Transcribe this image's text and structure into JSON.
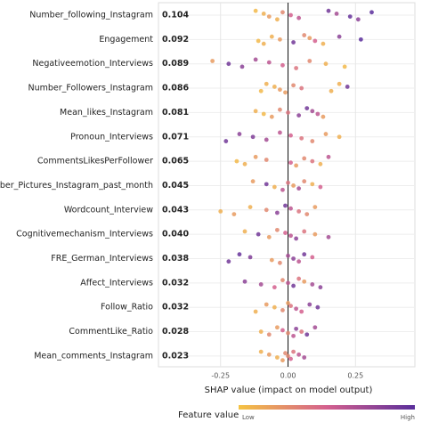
{
  "chart_data": {
    "type": "beeswarm",
    "xlabel": "SHAP value (impact on model output)",
    "legend_title": "Feature value",
    "legend_low": "Low",
    "legend_high": "High",
    "colors": [
      "#f5c342",
      "#d4608e",
      "#5a2e9b"
    ],
    "xlim": [
      -0.48,
      0.47
    ],
    "xticks": [
      -0.25,
      {
        "value": 0,
        "label": "0.00"
      },
      0.25
    ],
    "grid": true,
    "features": [
      "Number_following_Instagram",
      "Engagement",
      "Negativeemotion_Interviews",
      "Number_Followers_Instagram",
      "Mean_likes_Instagram",
      "Pronoun_Interviews",
      "CommentsLikesPerFollower",
      "Number_Pictures_Instagram_past_month",
      "Wordcount_Interview",
      "Cognitivemechanism_Interviews",
      "FRE_German_Interviews",
      "Affect_Interviews",
      "Follow_Ratio",
      "CommentLike_Ratio",
      "Mean_comments_Instagram"
    ],
    "values": [
      0.104,
      0.092,
      0.089,
      0.086,
      0.081,
      0.071,
      0.065,
      0.045,
      0.043,
      0.04,
      0.038,
      0.032,
      0.032,
      0.028,
      0.023
    ],
    "value_labels": [
      "0.104",
      "0.092",
      "0.089",
      "0.086",
      "0.081",
      "0.071",
      "0.065",
      "0.045",
      "0.043",
      "0.040",
      "0.038",
      "0.032",
      "0.032",
      "0.028",
      "0.023"
    ],
    "points": [
      {
        "x": [
          -0.12,
          -0.09,
          -0.07,
          -0.04,
          -0.02,
          0.01,
          0.04,
          0.15,
          0.18,
          0.23,
          0.26,
          0.31
        ],
        "feature_value": [
          0.05,
          0.1,
          0.2,
          0.1,
          0.3,
          0.5,
          0.6,
          0.9,
          0.7,
          0.95,
          0.8,
          1
        ]
      },
      {
        "x": [
          -0.11,
          -0.09,
          -0.06,
          -0.03,
          0.02,
          0.06,
          0.08,
          0.1,
          0.13,
          0.19,
          0.27
        ],
        "feature_value": [
          0.05,
          0.1,
          0.1,
          0.2,
          0.9,
          0.3,
          0.2,
          0.5,
          0.1,
          0.8,
          1
        ]
      },
      {
        "x": [
          -0.28,
          -0.22,
          -0.17,
          -0.12,
          -0.07,
          -0.02,
          0.03,
          0.08,
          0.14,
          0.21
        ],
        "feature_value": [
          0.2,
          0.9,
          0.8,
          0.7,
          0.6,
          0.5,
          0.4,
          0.3,
          0.1,
          0.05
        ]
      },
      {
        "x": [
          -0.1,
          -0.08,
          -0.05,
          -0.03,
          -0.01,
          0.02,
          0.05,
          0.16,
          0.19,
          0.22
        ],
        "feature_value": [
          0.05,
          0.1,
          0.1,
          0.2,
          0.2,
          0.3,
          0.4,
          0.1,
          0.1,
          0.9
        ]
      },
      {
        "x": [
          -0.12,
          -0.09,
          -0.06,
          -0.03,
          0.0,
          0.04,
          0.07,
          0.09,
          0.11,
          0.13
        ],
        "feature_value": [
          0.1,
          0.05,
          0.2,
          0.3,
          0.4,
          0.8,
          0.9,
          0.7,
          0.6,
          0.2
        ]
      },
      {
        "x": [
          -0.23,
          -0.18,
          -0.13,
          -0.08,
          -0.03,
          0.01,
          0.05,
          0.09,
          0.14,
          0.19
        ],
        "feature_value": [
          0.9,
          0.8,
          0.85,
          0.7,
          0.6,
          0.5,
          0.4,
          0.3,
          0.2,
          0.1
        ]
      },
      {
        "x": [
          -0.19,
          -0.16,
          -0.12,
          -0.08,
          0.01,
          0.03,
          0.06,
          0.09,
          0.12,
          0.15
        ],
        "feature_value": [
          0.05,
          0.1,
          0.2,
          0.3,
          0.5,
          0.2,
          0.3,
          0.4,
          0.1,
          0.6
        ]
      },
      {
        "x": [
          -0.13,
          -0.08,
          -0.05,
          -0.02,
          0.0,
          0.02,
          0.04,
          0.06,
          0.09,
          0.12
        ],
        "feature_value": [
          0.2,
          0.9,
          0.1,
          0.6,
          0.4,
          0.2,
          0.7,
          0.3,
          0.1,
          0.5
        ]
      },
      {
        "x": [
          -0.25,
          -0.2,
          -0.14,
          -0.08,
          -0.04,
          -0.01,
          0.01,
          0.04,
          0.07,
          0.1
        ],
        "feature_value": [
          0.1,
          0.2,
          0.1,
          0.3,
          0.8,
          0.9,
          0.6,
          0.4,
          0.3,
          0.2
        ]
      },
      {
        "x": [
          -0.16,
          -0.11,
          -0.07,
          -0.04,
          -0.01,
          0.01,
          0.03,
          0.06,
          0.1,
          0.15
        ],
        "feature_value": [
          0.1,
          0.9,
          0.2,
          0.3,
          0.5,
          0.6,
          0.8,
          0.4,
          0.2,
          0.7
        ]
      },
      {
        "x": [
          -0.22,
          -0.18,
          -0.14,
          -0.06,
          -0.03,
          0.0,
          0.02,
          0.04,
          0.06,
          0.09
        ],
        "feature_value": [
          0.9,
          0.95,
          0.85,
          0.2,
          0.3,
          0.7,
          0.8,
          0.6,
          0.9,
          0.5
        ]
      },
      {
        "x": [
          -0.16,
          -0.1,
          -0.05,
          -0.02,
          0.0,
          0.02,
          0.04,
          0.06,
          0.09,
          0.12
        ],
        "feature_value": [
          0.8,
          0.7,
          0.5,
          0.3,
          0.6,
          0.9,
          0.4,
          0.2,
          0.7,
          0.8
        ]
      },
      {
        "x": [
          -0.12,
          -0.08,
          -0.05,
          -0.02,
          0.0,
          0.01,
          0.03,
          0.05,
          0.08,
          0.11
        ],
        "feature_value": [
          0.1,
          0.2,
          0.1,
          0.3,
          0.2,
          0.4,
          0.6,
          0.5,
          0.8,
          0.9
        ]
      },
      {
        "x": [
          -0.1,
          -0.07,
          -0.04,
          -0.02,
          0.0,
          0.02,
          0.03,
          0.05,
          0.07,
          0.1
        ],
        "feature_value": [
          0.1,
          0.3,
          0.2,
          0.5,
          0.3,
          0.6,
          0.8,
          0.4,
          0.9,
          0.7
        ]
      },
      {
        "x": [
          -0.1,
          -0.07,
          -0.04,
          -0.02,
          -0.01,
          0.0,
          0.01,
          0.02,
          0.04,
          0.06
        ],
        "feature_value": [
          0.1,
          0.2,
          0.1,
          0.2,
          0.3,
          0.3,
          0.5,
          0.4,
          0.6,
          0.7
        ]
      }
    ]
  }
}
